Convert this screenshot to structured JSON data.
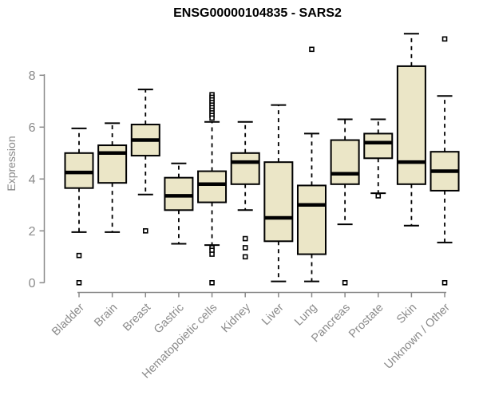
{
  "title": "ENSG00000104835 - SARS2",
  "ylabel": "Expression",
  "colors": {
    "background": "#ffffff",
    "box_fill": "#ebe6c7",
    "box_stroke": "#000000",
    "median": "#000000",
    "axis": "#8a8a8a",
    "axis_text": "#8a8a8a",
    "title_text": "#000000",
    "outlier_fill": "#ffffff"
  },
  "chart_data": {
    "type": "boxplot",
    "title": "ENSG00000104835 - SARS2",
    "xlabel": "",
    "ylabel": "Expression",
    "yticks": [
      0,
      2,
      4,
      6,
      8
    ],
    "ylim": [
      0,
      9.7
    ],
    "grid": false,
    "legend": "none",
    "categories": [
      "Bladder",
      "Brain",
      "Breast",
      "Gastric",
      "Hematopoietic cells",
      "Kidney",
      "Liver",
      "Lung",
      "Pancreas",
      "Prostate",
      "Skin",
      "Unknown / Other"
    ],
    "series": [
      {
        "name": "Bladder",
        "whisker_low": 1.95,
        "q1": 3.65,
        "median": 4.25,
        "q3": 5.0,
        "whisker_high": 5.95,
        "outliers": [
          1.05,
          0
        ]
      },
      {
        "name": "Brain",
        "whisker_low": 1.95,
        "q1": 3.85,
        "median": 5.0,
        "q3": 5.3,
        "whisker_high": 6.15,
        "outliers": []
      },
      {
        "name": "Breast",
        "whisker_low": 3.4,
        "q1": 4.9,
        "median": 5.5,
        "q3": 6.1,
        "whisker_high": 7.45,
        "outliers": [
          2.0
        ]
      },
      {
        "name": "Gastric",
        "whisker_low": 1.5,
        "q1": 2.8,
        "median": 3.35,
        "q3": 4.05,
        "whisker_high": 4.6,
        "outliers": []
      },
      {
        "name": "Hematopoietic cells",
        "whisker_low": 1.45,
        "q1": 3.1,
        "median": 3.8,
        "q3": 4.3,
        "whisker_high": 6.2,
        "outliers": [
          7.25,
          7.15,
          7.05,
          6.95,
          6.85,
          6.75,
          6.65,
          6.55,
          6.45,
          6.35,
          1.35,
          1.25,
          1.1,
          0
        ]
      },
      {
        "name": "Kidney",
        "whisker_low": 2.8,
        "q1": 3.8,
        "median": 4.65,
        "q3": 5.0,
        "whisker_high": 6.2,
        "outliers": [
          1.7,
          1.35,
          1.0
        ]
      },
      {
        "name": "Liver",
        "whisker_low": 0.05,
        "q1": 1.6,
        "median": 2.5,
        "q3": 4.65,
        "whisker_high": 6.85,
        "outliers": []
      },
      {
        "name": "Lung",
        "whisker_low": 0.05,
        "q1": 1.1,
        "median": 3.0,
        "q3": 3.75,
        "whisker_high": 5.75,
        "outliers": [
          9.0
        ]
      },
      {
        "name": "Pancreas",
        "whisker_low": 2.25,
        "q1": 3.8,
        "median": 4.2,
        "q3": 5.5,
        "whisker_high": 6.3,
        "outliers": [
          0
        ]
      },
      {
        "name": "Prostate",
        "whisker_low": 3.45,
        "q1": 4.8,
        "median": 5.4,
        "q3": 5.75,
        "whisker_high": 6.3,
        "outliers": [
          3.35
        ]
      },
      {
        "name": "Skin",
        "whisker_low": 2.2,
        "q1": 3.8,
        "median": 4.65,
        "q3": 8.35,
        "whisker_high": 9.6,
        "outliers": []
      },
      {
        "name": "Unknown / Other",
        "whisker_low": 1.55,
        "q1": 3.55,
        "median": 4.3,
        "q3": 5.05,
        "whisker_high": 7.2,
        "outliers": [
          9.4,
          0
        ]
      }
    ]
  }
}
